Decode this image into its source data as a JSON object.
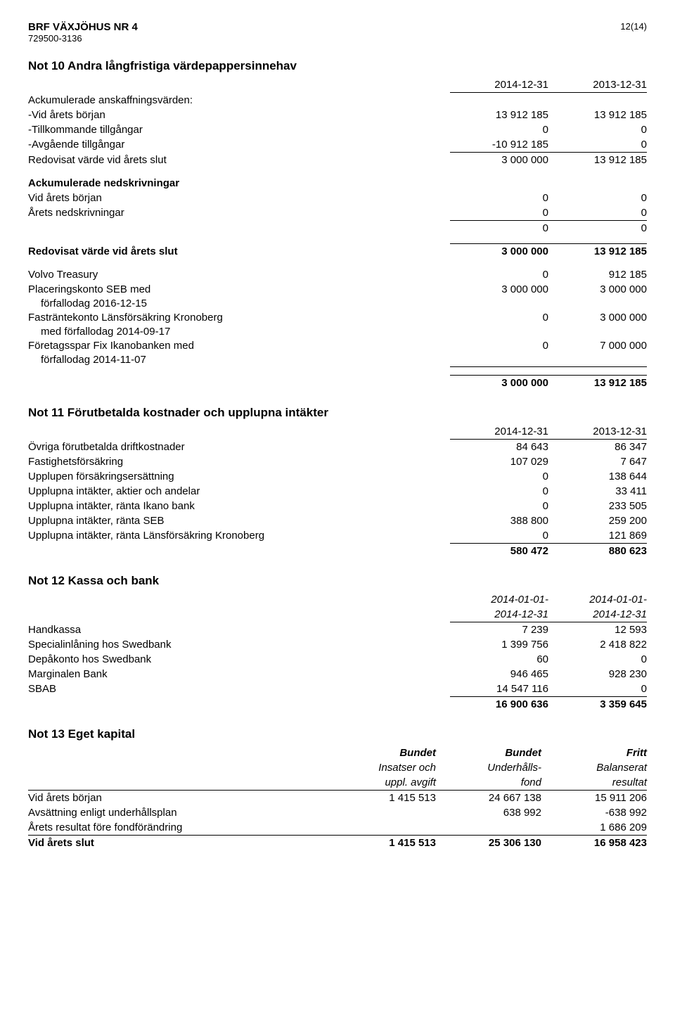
{
  "header": {
    "org_name": "BRF VÄXJÖHUS NR 4",
    "org_id": "729500-3136",
    "page_num": "12(14)"
  },
  "note10": {
    "title": "Not 10  Andra långfristiga värdepappersinnehav",
    "col_dates": [
      "2014-12-31",
      "2013-12-31"
    ],
    "ack_anskaff_label": "Ackumulerade anskaffningsvärden:",
    "vid_borjan": {
      "label": "-Vid årets början",
      "v1": "13 912 185",
      "v2": "13 912 185"
    },
    "tillkommande": {
      "label": "-Tillkommande tillgångar",
      "v1": "0",
      "v2": "0"
    },
    "avgaende": {
      "label": "-Avgående tillgångar",
      "v1": "-10 912 185",
      "v2": "0"
    },
    "redovisat1": {
      "label": "Redovisat värde vid årets slut",
      "v1": "3 000 000",
      "v2": "13 912 185"
    },
    "ack_nedskr_label": "Ackumulerade nedskrivningar",
    "ned_vid_borjan": {
      "label": "Vid årets början",
      "v1": "0",
      "v2": "0"
    },
    "arets_nedskr": {
      "label": "Årets nedskrivningar",
      "v1": "0",
      "v2": "0"
    },
    "nedskr_sum": {
      "v1": "0",
      "v2": "0"
    },
    "redovisat2": {
      "label": "Redovisat värde vid årets slut",
      "v1": "3 000 000",
      "v2": "13 912 185"
    },
    "volvo": {
      "label": "Volvo Treasury",
      "v1": "0",
      "v2": "912 185"
    },
    "seb": {
      "label1": "Placeringskonto SEB med",
      "label2": "förfallodag 2016-12-15",
      "v1": "3 000 000",
      "v2": "3 000 000"
    },
    "lansforsakring": {
      "label1": "Fasträntekonto Länsförsäkring Kronoberg",
      "label2": "med förfallodag 2014-09-17",
      "v1": "0",
      "v2": "3 000 000"
    },
    "ikano": {
      "label1": "Företagsspar Fix Ikanobanken med",
      "label2": "förfallodag 2014-11-07",
      "v1": "0",
      "v2": "7 000 000"
    },
    "sum3": {
      "v1": "3 000 000",
      "v2": "13 912 185"
    }
  },
  "note11": {
    "title": "Not 11  Förutbetalda kostnader och upplupna intäkter",
    "col_dates": [
      "2014-12-31",
      "2013-12-31"
    ],
    "rows": [
      {
        "label": "Övriga förutbetalda driftkostnader",
        "v1": "84 643",
        "v2": "86 347"
      },
      {
        "label": "Fastighetsförsäkring",
        "v1": "107 029",
        "v2": "7 647"
      },
      {
        "label": "Upplupen försäkringsersättning",
        "v1": "0",
        "v2": "138 644"
      },
      {
        "label": "Upplupna intäkter, aktier och andelar",
        "v1": "0",
        "v2": "33 411"
      },
      {
        "label": "Upplupna intäkter, ränta Ikano bank",
        "v1": "0",
        "v2": "233 505"
      },
      {
        "label": "Upplupna intäkter, ränta SEB",
        "v1": "388 800",
        "v2": "259 200"
      },
      {
        "label": "Upplupna intäkter, ränta Länsförsäkring Kronoberg",
        "v1": "0",
        "v2": "121 869"
      }
    ],
    "sum": {
      "v1": "580 472",
      "v2": "880 623"
    }
  },
  "note12": {
    "title": "Not 12  Kassa och bank",
    "col_dates_top": [
      "2014-01-01-",
      "2014-01-01-"
    ],
    "col_dates_bot": [
      "2014-12-31",
      "2014-12-31"
    ],
    "rows": [
      {
        "label": "Handkassa",
        "v1": "7 239",
        "v2": "12 593"
      },
      {
        "label": "Specialinlåning hos Swedbank",
        "v1": "1 399 756",
        "v2": "2 418 822"
      },
      {
        "label": "Depåkonto hos Swedbank",
        "v1": "60",
        "v2": "0"
      },
      {
        "label": "Marginalen Bank",
        "v1": "946 465",
        "v2": "928 230"
      },
      {
        "label": "SBAB",
        "v1": "14 547 116",
        "v2": "0"
      }
    ],
    "sum": {
      "v1": "16 900 636",
      "v2": "3 359 645"
    }
  },
  "note13": {
    "title": "Not 13  Eget kapital",
    "head_top": [
      "Bundet",
      "Bundet",
      "Fritt"
    ],
    "head_mid": [
      "Insatser och",
      "Underhålls-",
      "Balanserat"
    ],
    "head_bot": [
      "uppl. avgift",
      "fond",
      "resultat"
    ],
    "rows": [
      {
        "label": "Vid årets början",
        "c1": "1 415 513",
        "c2": "24 667 138",
        "c3": "15 911 206"
      },
      {
        "label": "Avsättning enligt underhållsplan",
        "c1": "",
        "c2": "638 992",
        "c3": "-638 992"
      },
      {
        "label": "Årets resultat före fondförändring",
        "c1": "",
        "c2": "",
        "c3": "1 686 209"
      }
    ],
    "slut": {
      "label": "Vid årets slut",
      "c1": "1 415 513",
      "c2": "25 306 130",
      "c3": "16 958 423"
    }
  }
}
